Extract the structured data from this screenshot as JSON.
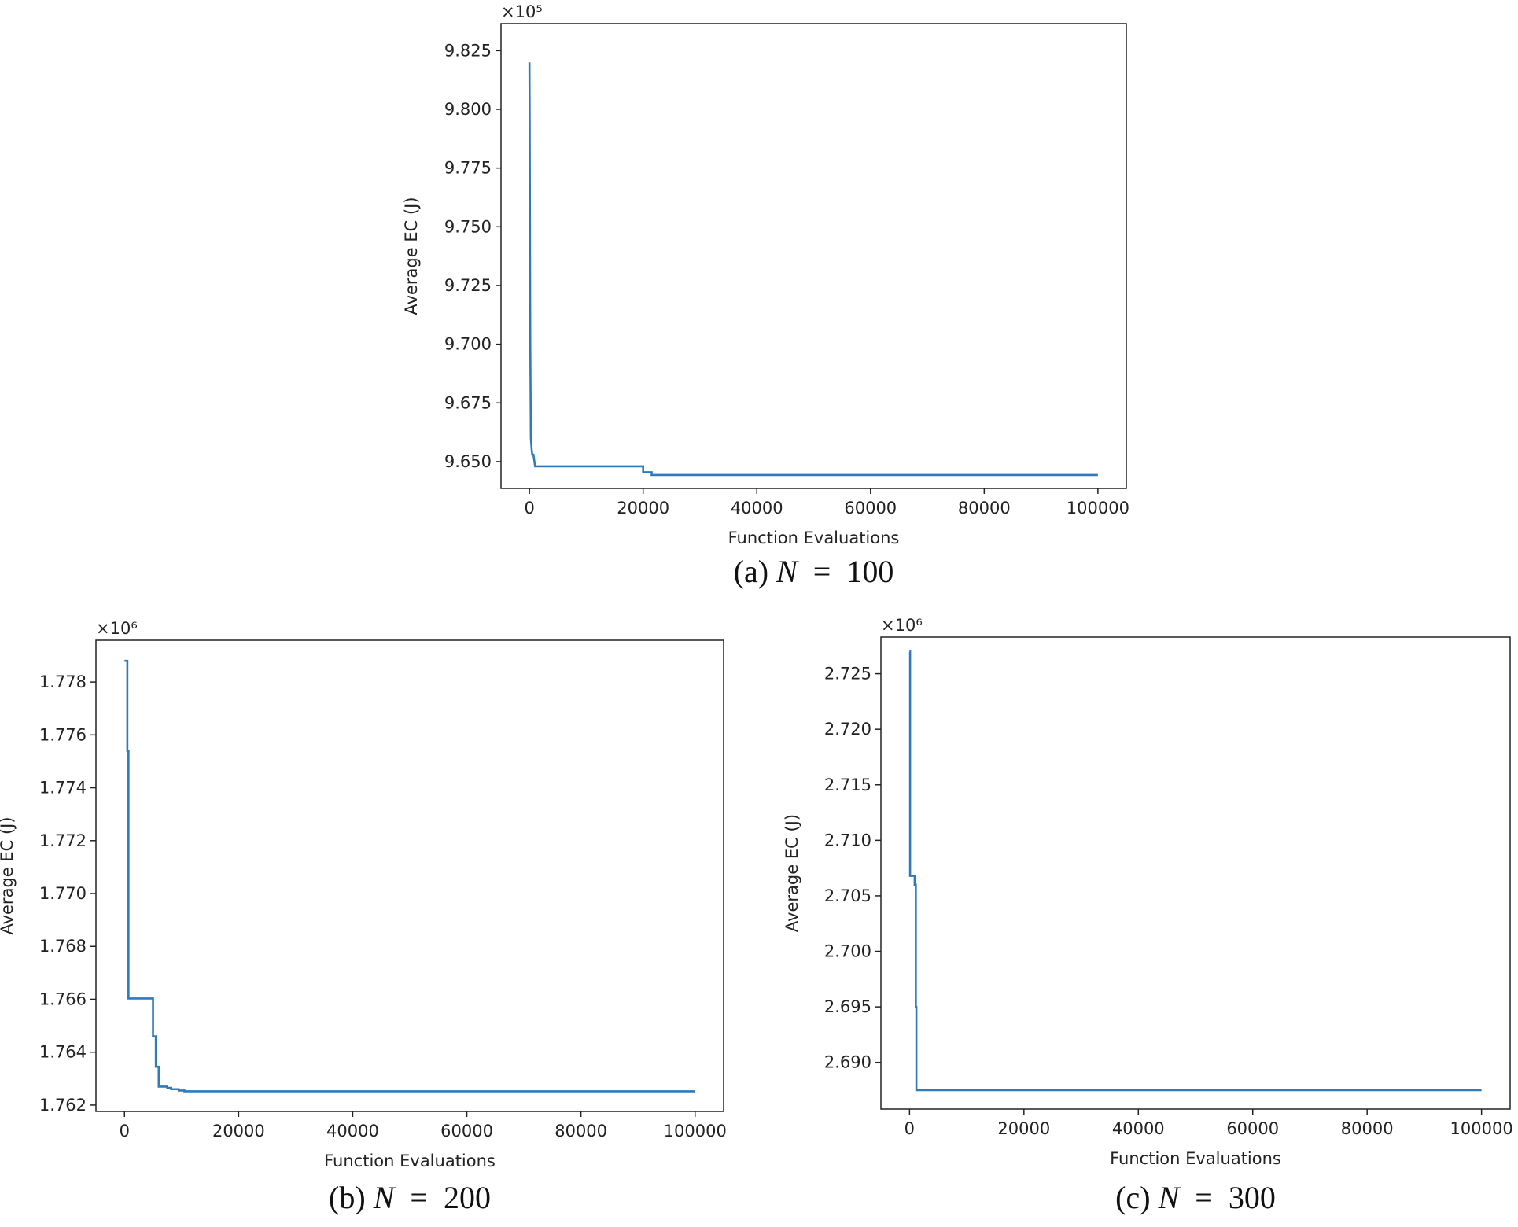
{
  "chart_data": [
    {
      "type": "line",
      "caption": {
        "prefix": "(a)",
        "var": "N",
        "eq": "=",
        "value": "100"
      },
      "xlabel": "Function Evaluations",
      "ylabel": "Average EC (J)",
      "offset_text": "×10⁵",
      "xlim": [
        -5000,
        105000
      ],
      "ylim": [
        9.6386,
        9.8365
      ],
      "x_ticks": [
        0,
        20000,
        40000,
        60000,
        80000,
        100000
      ],
      "x_tick_labels": [
        "0",
        "20000",
        "40000",
        "60000",
        "80000",
        "100000"
      ],
      "y_ticks": [
        9.65,
        9.675,
        9.7,
        9.725,
        9.75,
        9.775,
        9.8,
        9.825
      ],
      "y_tick_labels": [
        "9.650",
        "9.675",
        "9.700",
        "9.725",
        "9.750",
        "9.775",
        "9.800",
        "9.825"
      ],
      "series": [
        {
          "color": "#2f7ab9",
          "x": [
            0,
            50,
            150,
            250,
            400,
            500,
            700,
            1000,
            20000,
            20000,
            21500,
            21500,
            100000
          ],
          "y": [
            9.82,
            9.79,
            9.7,
            9.66,
            9.655,
            9.653,
            9.653,
            9.648,
            9.648,
            9.6455,
            9.6455,
            9.6443,
            9.6443
          ]
        }
      ]
    },
    {
      "type": "line",
      "caption": {
        "prefix": "(b)",
        "var": "N",
        "eq": "=",
        "value": "200"
      },
      "xlabel": "Function Evaluations",
      "ylabel": "Average EC (J)",
      "offset_text": "×10⁶",
      "xlim": [
        -5000,
        105000
      ],
      "ylim": [
        1.76176,
        1.77958
      ],
      "x_ticks": [
        0,
        20000,
        40000,
        60000,
        80000,
        100000
      ],
      "x_tick_labels": [
        "0",
        "20000",
        "40000",
        "60000",
        "80000",
        "100000"
      ],
      "y_ticks": [
        1.762,
        1.764,
        1.766,
        1.768,
        1.77,
        1.772,
        1.774,
        1.776,
        1.778
      ],
      "y_tick_labels": [
        "1.762",
        "1.764",
        "1.766",
        "1.768",
        "1.770",
        "1.772",
        "1.774",
        "1.776",
        "1.778"
      ],
      "series": [
        {
          "color": "#2f7ab9",
          "x": [
            0,
            500,
            500,
            700,
            700,
            5000,
            5000,
            5500,
            5500,
            6000,
            6000,
            7500,
            7500,
            8200,
            8200,
            9500,
            9500,
            10500,
            10500,
            100000
          ],
          "y": [
            1.7788,
            1.7788,
            1.7754,
            1.7754,
            1.76603,
            1.76603,
            1.7646,
            1.7646,
            1.76345,
            1.76345,
            1.7627,
            1.7627,
            1.76265,
            1.76265,
            1.7626,
            1.7626,
            1.76255,
            1.76255,
            1.76252,
            1.76252
          ]
        }
      ]
    },
    {
      "type": "line",
      "caption": {
        "prefix": "(c)",
        "var": "N",
        "eq": "=",
        "value": "300"
      },
      "xlabel": "Function Evaluations",
      "ylabel": "Average EC (J)",
      "offset_text": "×10⁶",
      "xlim": [
        -5000,
        105000
      ],
      "ylim": [
        2.6858,
        2.7283
      ],
      "x_ticks": [
        0,
        20000,
        40000,
        60000,
        80000,
        100000
      ],
      "x_tick_labels": [
        "0",
        "20000",
        "40000",
        "60000",
        "80000",
        "100000"
      ],
      "y_ticks": [
        2.69,
        2.695,
        2.7,
        2.705,
        2.71,
        2.715,
        2.72,
        2.725
      ],
      "y_tick_labels": [
        "2.690",
        "2.695",
        "2.700",
        "2.705",
        "2.710",
        "2.715",
        "2.720",
        "2.725"
      ],
      "series": [
        {
          "color": "#2f7ab9",
          "x": [
            0,
            100,
            100,
            900,
            900,
            1100,
            1100,
            1200,
            1200,
            100000
          ],
          "y": [
            2.727,
            2.727,
            2.7068,
            2.7068,
            2.706,
            2.706,
            2.695,
            2.695,
            2.6875,
            2.6875
          ]
        }
      ]
    }
  ]
}
